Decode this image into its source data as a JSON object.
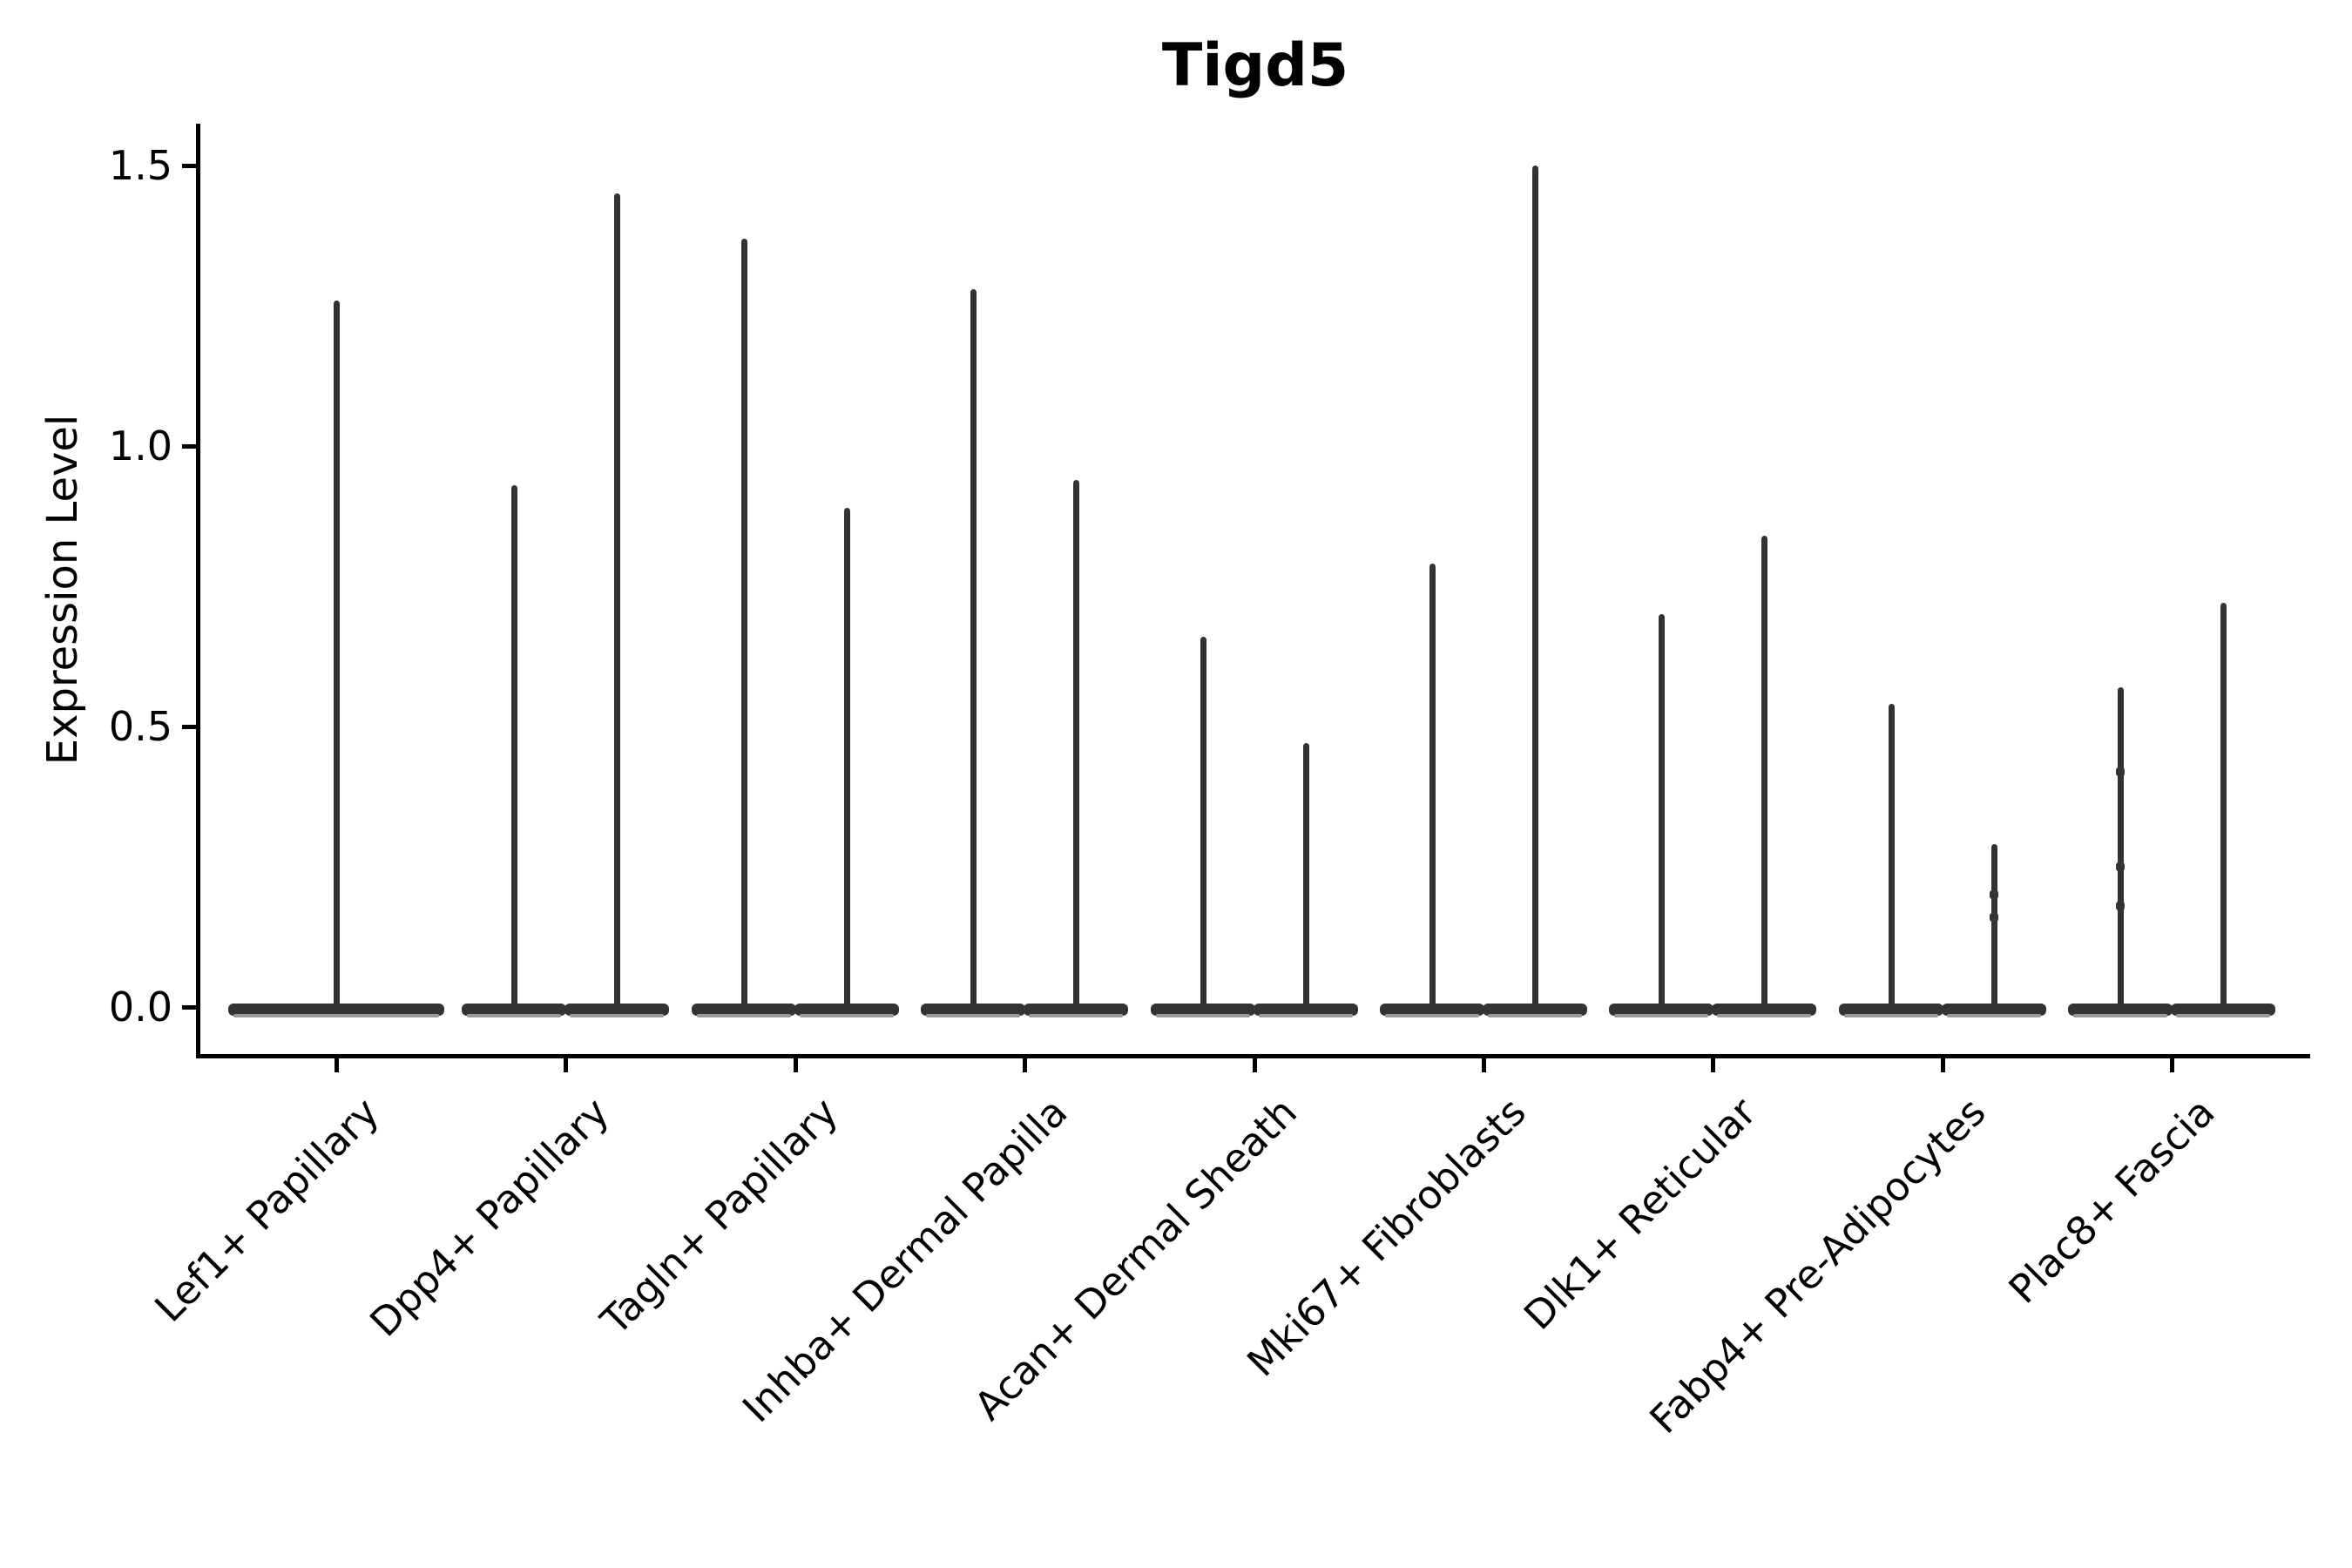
{
  "title": "Tigd5",
  "axes": {
    "ylabel": "Expression Level",
    "ytick_labels": [
      "0.0",
      "0.5",
      "1.0",
      "1.5"
    ]
  },
  "chart_data": {
    "type": "violin",
    "title": "Tigd5",
    "xlabel": "",
    "ylabel": "Expression Level",
    "ylim": [
      -0.09,
      1.57
    ],
    "yticks": [
      0.0,
      0.5,
      1.0,
      1.5
    ],
    "grid": false,
    "legend": null,
    "floor_value": 0.0,
    "note": "Each category shows thin needle violins: a wide flat body collapsed at expression 0 with narrow spikes rising to the max expression value; first category has one full-width violin, all others have two half-width violins side by side.",
    "categories": [
      "Lef1+ Papillary",
      "Dpp4+ Papillary",
      "Tagln+ Papillary",
      "Inhba+ Dermal Papilla",
      "Acan+ Dermal Sheath",
      "Mki67+ Fibroblasts",
      "Dlk1+ Reticular",
      "Fabp4+ Pre-Adipocytes",
      "Plac8+ Fascia"
    ],
    "series": [
      {
        "category": "Lef1+ Papillary",
        "violins": [
          {
            "max": 1.26,
            "dots": []
          }
        ]
      },
      {
        "category": "Dpp4+ Papillary",
        "violins": [
          {
            "max": 0.93,
            "dots": []
          },
          {
            "max": 1.45,
            "dots": []
          }
        ]
      },
      {
        "category": "Tagln+ Papillary",
        "violins": [
          {
            "max": 1.37,
            "dots": []
          },
          {
            "max": 0.89,
            "dots": []
          }
        ]
      },
      {
        "category": "Inhba+ Dermal Papilla",
        "violins": [
          {
            "max": 1.28,
            "dots": []
          },
          {
            "max": 0.94,
            "dots": []
          }
        ]
      },
      {
        "category": "Acan+ Dermal Sheath",
        "violins": [
          {
            "max": 0.66,
            "dots": []
          },
          {
            "max": 0.47,
            "dots": []
          }
        ]
      },
      {
        "category": "Mki67+ Fibroblasts",
        "violins": [
          {
            "max": 0.79,
            "dots": []
          },
          {
            "max": 1.5,
            "dots": []
          }
        ]
      },
      {
        "category": "Dlk1+ Reticular",
        "violins": [
          {
            "max": 0.7,
            "dots": []
          },
          {
            "max": 0.84,
            "dots": []
          }
        ]
      },
      {
        "category": "Fabp4+ Pre-Adipocytes",
        "violins": [
          {
            "max": 0.54,
            "dots": []
          },
          {
            "max": 0.29,
            "dots": [
              0.2,
              0.16
            ]
          }
        ]
      },
      {
        "category": "Plac8+ Fascia",
        "violins": [
          {
            "max": 0.57,
            "dots": [
              0.42,
              0.25,
              0.18
            ]
          },
          {
            "max": 0.72,
            "dots": []
          }
        ]
      }
    ],
    "colors": {
      "violin_stroke": "#333333",
      "violin_fill_hint": "#9a9a9a",
      "axis": "#000000",
      "text": "#000000",
      "background": "#ffffff"
    }
  }
}
